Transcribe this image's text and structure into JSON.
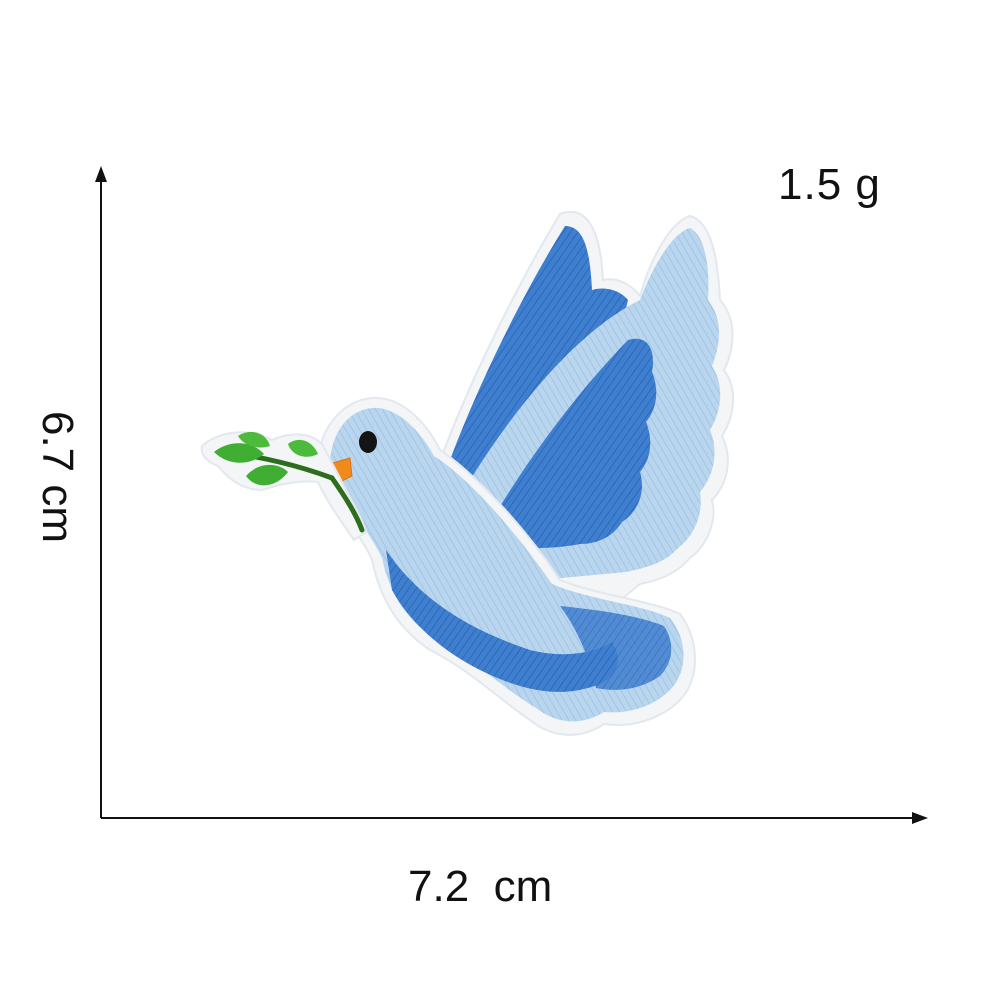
{
  "dimensions": {
    "height_label": "6.7 cm",
    "width_label": "7.2  cm",
    "weight_label": "1.5 g"
  },
  "product": {
    "icon": "dove-with-olive-branch-icon",
    "colors": {
      "dark_blue": "#3f7fcf",
      "light_blue": "#b9d6ee",
      "border": "#eef2f5",
      "leaf_green": "#3fae33",
      "beak_orange": "#f08a1c"
    }
  }
}
